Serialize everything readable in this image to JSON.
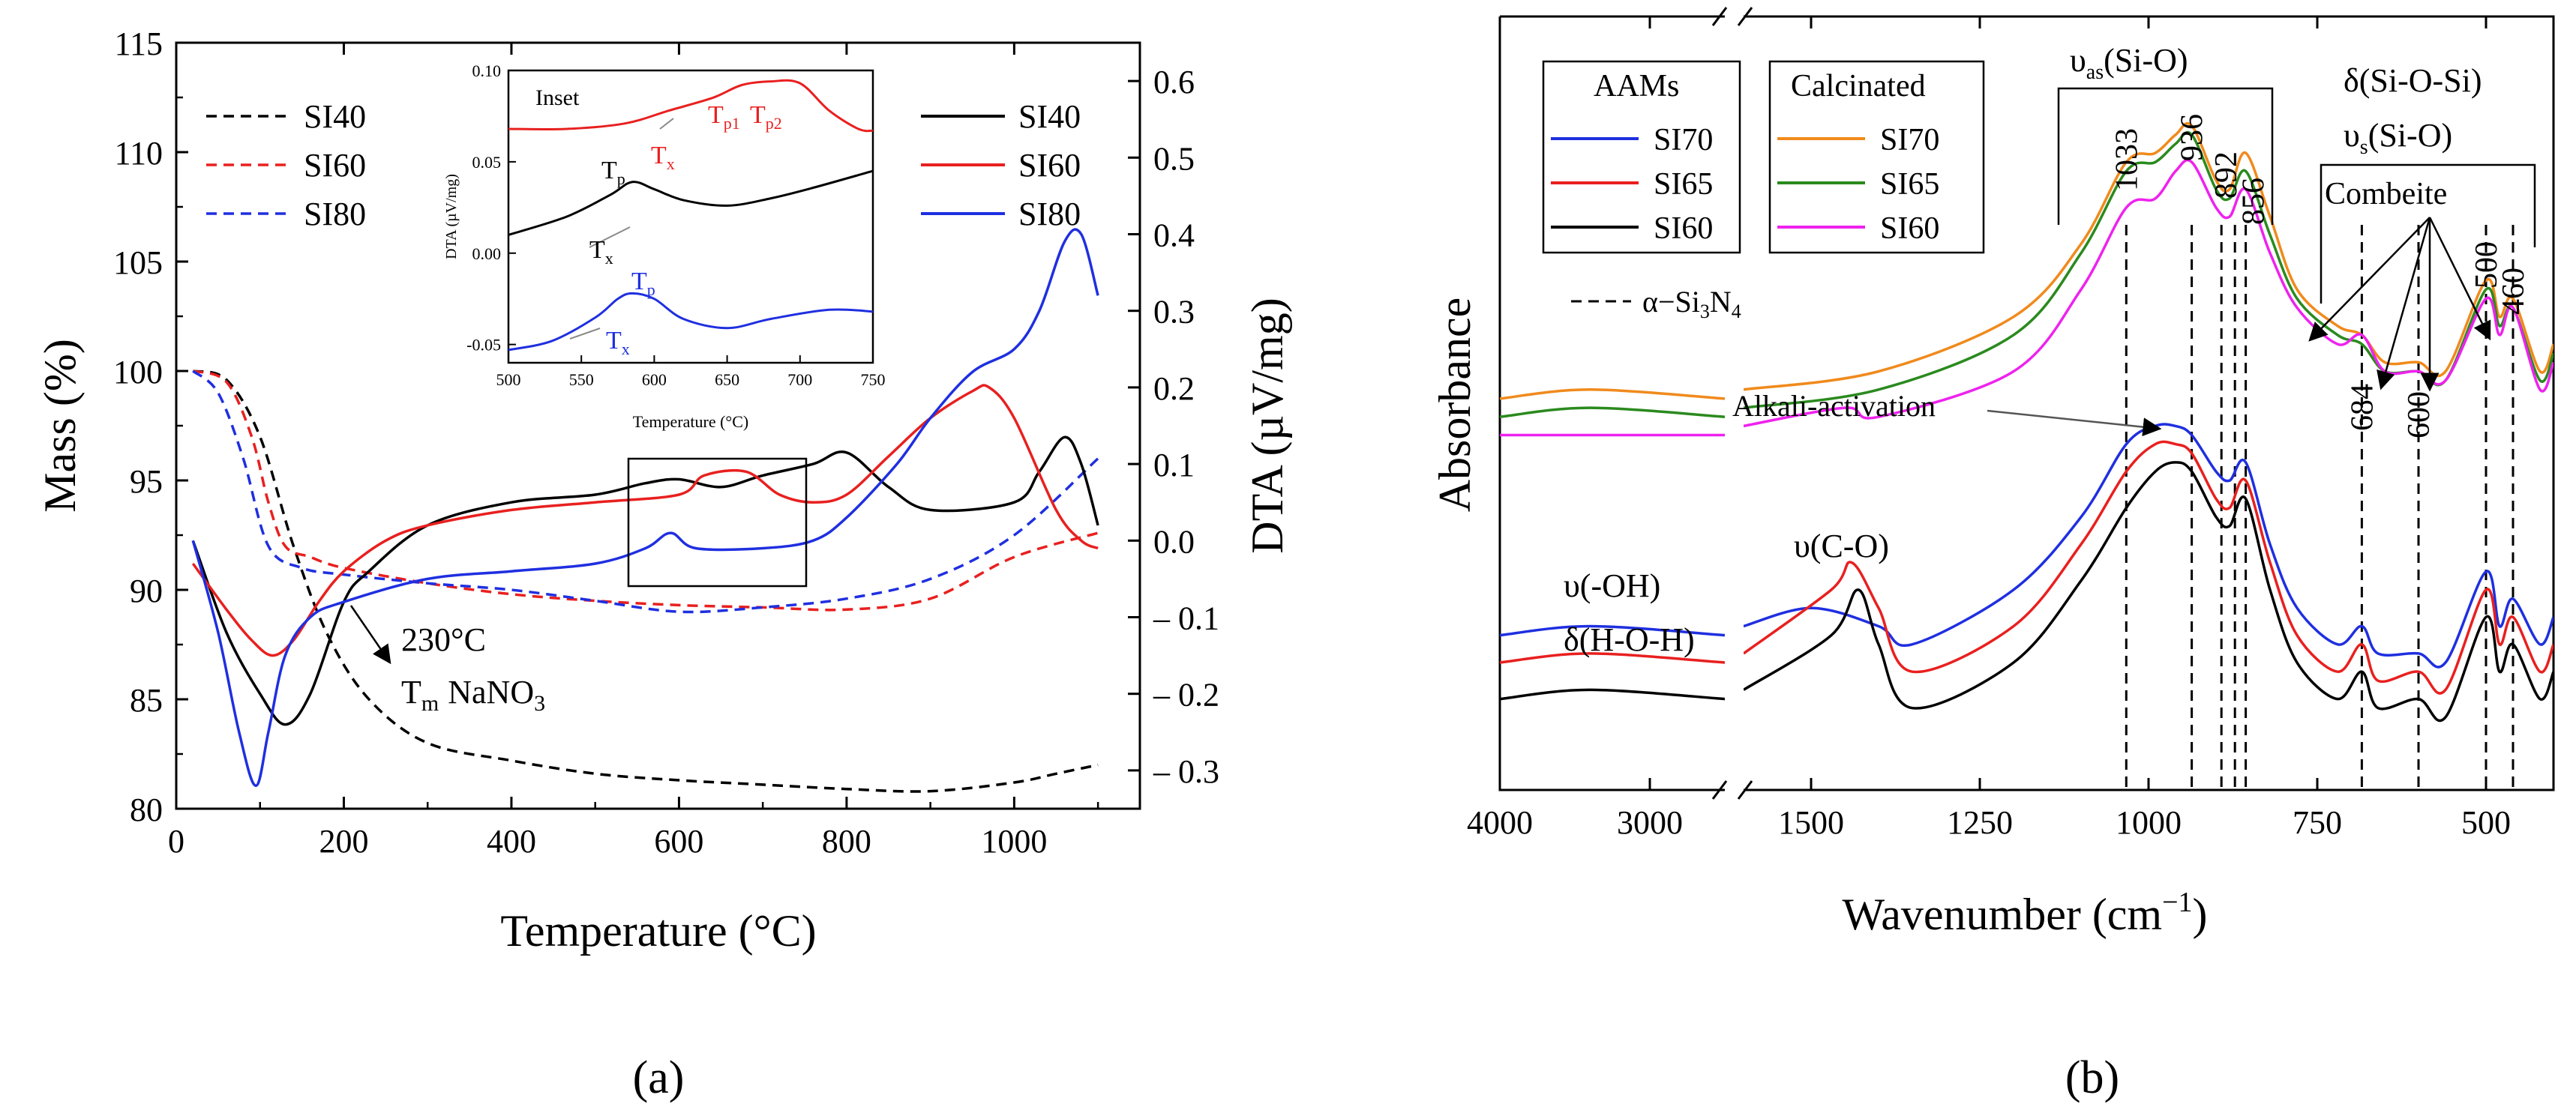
{
  "panel_a": {
    "label": "(a)",
    "left_axis_title": "Mass (%)",
    "right_axis_title": "DTA (µV/mg)",
    "x_axis_title": "Temperature (°C)",
    "x_ticks": [
      "0",
      "200",
      "400",
      "600",
      "800",
      "1000"
    ],
    "left_ticks": [
      "80",
      "85",
      "90",
      "95",
      "100",
      "105",
      "110",
      "115"
    ],
    "right_ticks": [
      "-0.3",
      "-0.2",
      "-0.1",
      "0.0",
      "0.1",
      "0.2",
      "0.3",
      "0.4",
      "0.5",
      "0.6"
    ],
    "legend_left": [
      "SI40",
      "SI60",
      "SI80"
    ],
    "legend_right": [
      "SI40",
      "SI60",
      "SI80"
    ],
    "annotation_temp": "230°C",
    "annotation_tm": "T",
    "annotation_tm_sub": "m",
    "annotation_nano3": "NaNO",
    "annotation_nano3_sub": "3",
    "inset": {
      "title": "Inset",
      "y_label": "DTA (µV/mg)",
      "x_label": "Temperature (°C)",
      "x_ticks": [
        "500",
        "550",
        "600",
        "650",
        "700",
        "750"
      ],
      "y_ticks": [
        "-0.05",
        "0.00",
        "0.05",
        "0.10"
      ],
      "labels": {
        "tp1": "T",
        "tp1_sub": "p1",
        "tp2": "T",
        "tp2_sub": "p2",
        "tx_red": "T",
        "tx_red_sub": "x",
        "tp_black": "T",
        "tp_black_sub": "p",
        "tx_black": "T",
        "tx_black_sub": "x",
        "tp_blue": "T",
        "tp_blue_sub": "p",
        "tx_blue": "T",
        "tx_blue_sub": "x"
      }
    }
  },
  "panel_b": {
    "label": "(b)",
    "y_axis_title": "Absorbance",
    "x_axis_title": "Wavenumber (cm",
    "x_axis_title_sup": "−1",
    "x_axis_title_end": ")",
    "x_ticks": [
      "4000",
      "3000",
      "1500",
      "1250",
      "1000",
      "750",
      "500"
    ],
    "legend_aams_title": "AAMs",
    "legend_aams": [
      "SI70",
      "SI65",
      "SI60"
    ],
    "legend_calc_title": "Calcinated",
    "legend_calc": [
      "SI70",
      "SI65",
      "SI60"
    ],
    "si3n4_label": "α−Si",
    "si3n4_sub1": "3",
    "si3n4_mid": "N",
    "si3n4_sub2": "4",
    "vas_label": "υ",
    "vas_sub": "as",
    "vas_end": "(Si-O)",
    "delta_label": "δ(Si-O-Si)",
    "vs_label": "υ",
    "vs_sub": "s",
    "vs_end": "(Si-O)",
    "combeite": "Combeite",
    "alkali": "Alkali-activation",
    "oh_label": "υ(-OH)",
    "hoh_label": "δ(H-O-H)",
    "co_label": "υ(C-O)",
    "peak_labels": [
      "1033",
      "936",
      "892",
      "856",
      "684",
      "600",
      "500",
      "460"
    ]
  },
  "colors": {
    "black": "#000000",
    "red": "#e8201f",
    "blue": "#1f2fe0",
    "orange": "#f08a1c",
    "green": "#2a8a1e",
    "magenta": "#ee22ee"
  },
  "chart_data": [
    {
      "type": "line",
      "title": "",
      "xlabel": "Temperature (°C)",
      "ylabel": "Mass (%)",
      "y2label": "DTA (µV/mg)",
      "xlim": [
        0,
        1150
      ],
      "ylim": [
        80,
        115
      ],
      "y2lim": [
        -0.35,
        0.65
      ],
      "series": [
        {
          "name": "SI40 mass",
          "axis": "left",
          "style": "dashed",
          "color": "black",
          "x": [
            20,
            60,
            100,
            140,
            180,
            230,
            300,
            400,
            500,
            600,
            700,
            800,
            900,
            1000,
            1050,
            1100
          ],
          "y": [
            100,
            99.6,
            97,
            92,
            88,
            85,
            83,
            82.2,
            81.6,
            81.3,
            81.1,
            80.9,
            80.8,
            81.2,
            81.6,
            82
          ]
        },
        {
          "name": "SI60 mass",
          "axis": "left",
          "style": "dashed",
          "color": "red",
          "x": [
            20,
            60,
            90,
            110,
            130,
            160,
            200,
            300,
            400,
            500,
            600,
            700,
            800,
            900,
            1000,
            1100
          ],
          "y": [
            100,
            99.5,
            97,
            94,
            92,
            91.5,
            91,
            90.3,
            89.8,
            89.5,
            89.3,
            89.2,
            89.1,
            89.6,
            91.5,
            92.6
          ]
        },
        {
          "name": "SI80 mass",
          "axis": "left",
          "style": "dashed",
          "color": "blue",
          "x": [
            20,
            50,
            80,
            110,
            150,
            200,
            300,
            400,
            500,
            600,
            700,
            800,
            900,
            1000,
            1100
          ],
          "y": [
            100,
            99,
            96,
            92,
            91,
            90.7,
            90.3,
            90,
            89.5,
            89,
            89.2,
            89.6,
            90.5,
            92.5,
            96
          ]
        },
        {
          "name": "SI40 DTA",
          "axis": "right",
          "style": "solid",
          "color": "black",
          "x": [
            20,
            60,
            100,
            130,
            160,
            200,
            230,
            300,
            400,
            500,
            560,
            600,
            650,
            700,
            760,
            800,
            850,
            900,
            1000,
            1030,
            1060,
            1080,
            1100
          ],
          "y": [
            0.0,
            -0.12,
            -0.2,
            -0.24,
            -0.2,
            -0.08,
            -0.04,
            0.02,
            0.05,
            0.06,
            0.075,
            0.08,
            0.07,
            0.085,
            0.1,
            0.115,
            0.07,
            0.04,
            0.05,
            0.09,
            0.135,
            0.1,
            0.02
          ]
        },
        {
          "name": "SI60 DTA",
          "axis": "right",
          "style": "solid",
          "color": "red",
          "x": [
            20,
            60,
            90,
            115,
            140,
            170,
            200,
            250,
            300,
            400,
            500,
            600,
            630,
            680,
            720,
            760,
            800,
            850,
            900,
            950,
            970,
            1000,
            1050,
            1080,
            1100
          ],
          "y": [
            -0.03,
            -0.09,
            -0.13,
            -0.15,
            -0.13,
            -0.08,
            -0.04,
            0.0,
            0.02,
            0.04,
            0.05,
            0.06,
            0.085,
            0.09,
            0.06,
            0.05,
            0.06,
            0.11,
            0.16,
            0.195,
            0.2,
            0.16,
            0.04,
            0.0,
            -0.01
          ]
        },
        {
          "name": "SI80 DTA",
          "axis": "right",
          "style": "solid",
          "color": "blue",
          "x": [
            20,
            50,
            75,
            95,
            110,
            130,
            160,
            200,
            300,
            400,
            500,
            560,
            590,
            620,
            700,
            760,
            800,
            860,
            900,
            950,
            1000,
            1030,
            1060,
            1080,
            1100
          ],
          "y": [
            0.0,
            -0.12,
            -0.25,
            -0.32,
            -0.25,
            -0.15,
            -0.1,
            -0.08,
            -0.05,
            -0.04,
            -0.03,
            -0.01,
            0.01,
            -0.01,
            -0.01,
            0.0,
            0.03,
            0.1,
            0.16,
            0.22,
            0.25,
            0.3,
            0.39,
            0.4,
            0.32
          ]
        }
      ],
      "annotations": [
        "230°C",
        "Tm NaNO3"
      ]
    },
    {
      "type": "line",
      "title": "Inset",
      "xlabel": "Temperature (°C)",
      "ylabel": "DTA (µV/mg)",
      "xlim": [
        500,
        750
      ],
      "ylim": [
        -0.06,
        0.1
      ],
      "series": [
        {
          "name": "SI60",
          "color": "red",
          "x": [
            500,
            540,
            580,
            610,
            640,
            660,
            680,
            700,
            720,
            740,
            750
          ],
          "y": [
            0.068,
            0.068,
            0.071,
            0.078,
            0.085,
            0.092,
            0.094,
            0.093,
            0.078,
            0.068,
            0.067
          ]
        },
        {
          "name": "SI40",
          "color": "black",
          "x": [
            500,
            540,
            570,
            585,
            600,
            620,
            650,
            680,
            710,
            750
          ],
          "y": [
            0.01,
            0.02,
            0.032,
            0.039,
            0.035,
            0.029,
            0.026,
            0.03,
            0.036,
            0.045
          ]
        },
        {
          "name": "SI80",
          "color": "blue",
          "x": [
            500,
            530,
            560,
            575,
            585,
            600,
            620,
            650,
            680,
            720,
            750
          ],
          "y": [
            -0.053,
            -0.048,
            -0.035,
            -0.025,
            -0.022,
            -0.025,
            -0.036,
            -0.041,
            -0.036,
            -0.031,
            -0.032
          ]
        }
      ]
    },
    {
      "type": "line",
      "title": "",
      "xlabel": "Wavenumber (cm−1)",
      "ylabel": "Absorbance",
      "x_segments": [
        [
          4000,
          2500
        ],
        [
          1600,
          400
        ]
      ],
      "series": [
        {
          "name": "Calcinated SI70",
          "color": "orange",
          "x": [
            4000,
            3400,
            2500,
            1600,
            1400,
            1200,
            1100,
            1033,
            990,
            960,
            936,
            900,
            880,
            856,
            820,
            780,
            720,
            684,
            650,
            600,
            560,
            500,
            480,
            460,
            420,
            400
          ],
          "y": [
            0.63,
            0.64,
            0.63,
            0.64,
            0.66,
            0.72,
            0.8,
            0.89,
            0.9,
            0.92,
            0.93,
            0.87,
            0.86,
            0.9,
            0.83,
            0.75,
            0.71,
            0.7,
            0.67,
            0.67,
            0.66,
            0.76,
            0.72,
            0.74,
            0.66,
            0.69
          ]
        },
        {
          "name": "Calcinated SI65",
          "color": "green",
          "x": [
            4000,
            3400,
            2500,
            1600,
            1400,
            1200,
            1100,
            1033,
            990,
            960,
            936,
            900,
            880,
            856,
            820,
            780,
            720,
            684,
            650,
            600,
            560,
            500,
            480,
            460,
            420,
            400
          ],
          "y": [
            0.61,
            0.62,
            0.61,
            0.62,
            0.64,
            0.7,
            0.79,
            0.88,
            0.89,
            0.91,
            0.92,
            0.86,
            0.85,
            0.88,
            0.81,
            0.74,
            0.7,
            0.69,
            0.66,
            0.66,
            0.65,
            0.75,
            0.71,
            0.73,
            0.65,
            0.68
          ]
        },
        {
          "name": "Calcinated SI60",
          "color": "magenta",
          "x": [
            4000,
            3400,
            2500,
            1600,
            1450,
            1400,
            1200,
            1100,
            1033,
            990,
            960,
            936,
            900,
            880,
            856,
            820,
            780,
            720,
            684,
            650,
            600,
            560,
            500,
            480,
            460,
            420,
            400
          ],
          "y": [
            0.59,
            0.59,
            0.59,
            0.6,
            0.62,
            0.61,
            0.66,
            0.75,
            0.84,
            0.85,
            0.88,
            0.89,
            0.84,
            0.83,
            0.86,
            0.79,
            0.73,
            0.69,
            0.7,
            0.66,
            0.66,
            0.65,
            0.74,
            0.7,
            0.73,
            0.64,
            0.67
          ]
        },
        {
          "name": "AAMs SI70",
          "color": "blue",
          "x": [
            4000,
            3400,
            2500,
            1600,
            1500,
            1400,
            1350,
            1200,
            1100,
            1033,
            990,
            960,
            936,
            900,
            880,
            856,
            820,
            780,
            720,
            684,
            660,
            600,
            560,
            500,
            480,
            460,
            420,
            400
          ],
          "y": [
            0.37,
            0.38,
            0.37,
            0.38,
            0.4,
            0.38,
            0.36,
            0.42,
            0.5,
            0.58,
            0.6,
            0.6,
            0.59,
            0.55,
            0.54,
            0.56,
            0.47,
            0.4,
            0.36,
            0.38,
            0.35,
            0.35,
            0.34,
            0.44,
            0.38,
            0.41,
            0.36,
            0.39
          ]
        },
        {
          "name": "AAMs SI65",
          "color": "red",
          "x": [
            4000,
            3400,
            2500,
            1600,
            1470,
            1440,
            1400,
            1350,
            1200,
            1100,
            1033,
            990,
            960,
            936,
            900,
            880,
            856,
            820,
            780,
            720,
            684,
            660,
            600,
            560,
            500,
            480,
            460,
            420,
            400
          ],
          "y": [
            0.34,
            0.35,
            0.34,
            0.35,
            0.42,
            0.45,
            0.4,
            0.33,
            0.38,
            0.47,
            0.55,
            0.58,
            0.58,
            0.57,
            0.52,
            0.51,
            0.54,
            0.45,
            0.37,
            0.33,
            0.36,
            0.32,
            0.33,
            0.31,
            0.42,
            0.36,
            0.39,
            0.33,
            0.36
          ]
        },
        {
          "name": "AAMs SI60",
          "color": "black",
          "x": [
            4000,
            3400,
            2500,
            1600,
            1470,
            1430,
            1400,
            1350,
            1200,
            1100,
            1033,
            990,
            960,
            936,
            900,
            880,
            856,
            820,
            780,
            720,
            684,
            660,
            600,
            560,
            500,
            480,
            460,
            420,
            400
          ],
          "y": [
            0.3,
            0.31,
            0.3,
            0.31,
            0.37,
            0.42,
            0.36,
            0.29,
            0.34,
            0.43,
            0.51,
            0.55,
            0.56,
            0.55,
            0.5,
            0.49,
            0.52,
            0.42,
            0.34,
            0.3,
            0.33,
            0.29,
            0.3,
            0.28,
            0.39,
            0.33,
            0.36,
            0.3,
            0.33
          ]
        }
      ],
      "reference_lines": {
        "label": "α−Si3N4",
        "wavenumbers": [
          1033,
          936,
          892,
          872,
          856,
          684,
          600,
          500,
          460
        ]
      }
    }
  ]
}
